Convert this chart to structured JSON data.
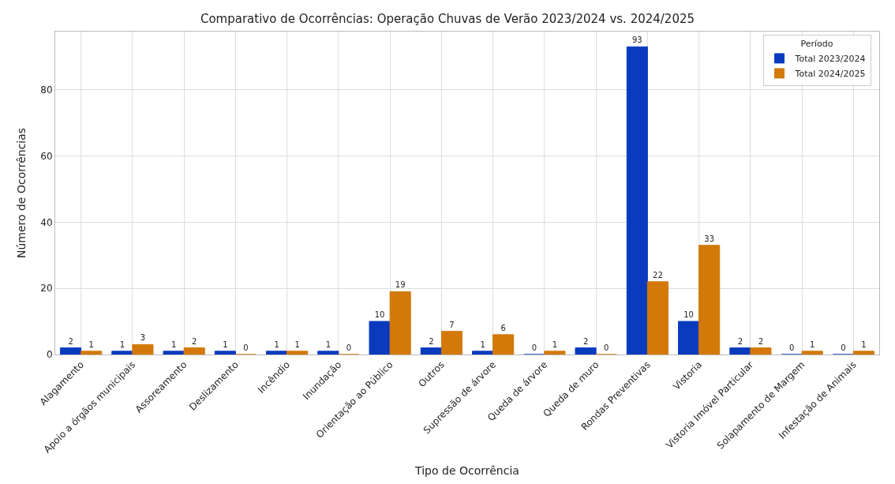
{
  "chart_data": {
    "type": "bar",
    "title": "Comparativo de Ocorrências: Operação Chuvas de Verão 2023/2024 vs. 2024/2025",
    "xlabel": "Tipo de Ocorrência",
    "ylabel": "Número de Ocorrências",
    "legend_title": "Período",
    "categories": [
      "Alagamento",
      "Apoio a órgãos municipais",
      "Assoreamento",
      "Deslizamento",
      "Incêndio",
      "Inundação",
      "Orientação ao Público",
      "Outros",
      "Supressão de árvore",
      "Queda de árvore",
      "Queda de muro",
      "Rondas Preventivas",
      "Vistoria",
      "Vistoria Imóvel Particular",
      "Solapamento de Margem",
      "Infestação de Animais"
    ],
    "series": [
      {
        "name": "Total 2023/2024",
        "color": "#0a3bbf",
        "values": [
          2,
          1,
          1,
          1,
          1,
          1,
          10,
          2,
          1,
          0,
          2,
          93,
          10,
          2,
          0,
          0
        ]
      },
      {
        "name": "Total 2024/2025",
        "color": "#d2790a",
        "values": [
          1,
          3,
          2,
          0,
          1,
          0,
          19,
          7,
          6,
          1,
          0,
          22,
          33,
          2,
          1,
          1
        ]
      }
    ],
    "ylim": [
      0,
      97.6
    ],
    "yticks": [
      0,
      20,
      40,
      60,
      80
    ],
    "grid": true,
    "legend": "top right",
    "data_labels": true
  }
}
